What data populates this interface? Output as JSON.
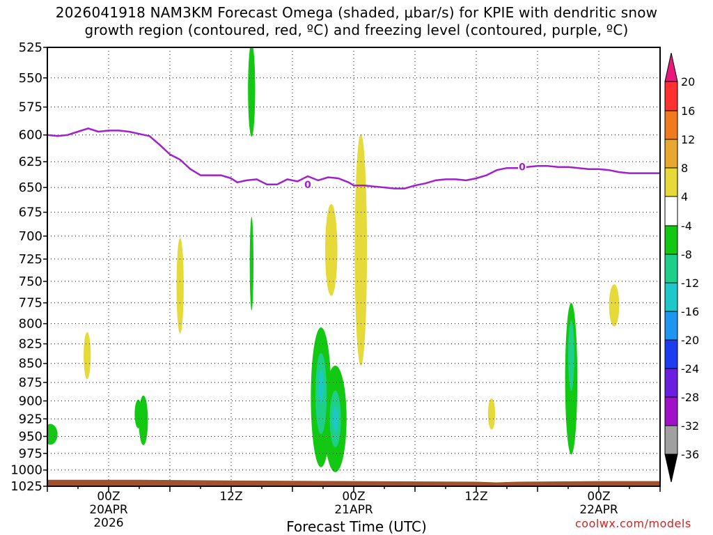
{
  "title_line1": "2026041918 NAM3KM Forecast Omega (shaded, μbar/s) for KPIE with dendritic snow",
  "title_line2": "growth region (contoured, red, ºC) and freezing level (contoured, purple, ºC)",
  "credit": "coolwx.com/models",
  "chart_data": {
    "type": "heatmap",
    "title": "2026041918 NAM3KM Forecast Omega (shaded, μbar/s) for KPIE with dendritic snow growth region (contoured, red, ºC) and freezing level (contoured, purple, ºC)",
    "xlabel": "Forecast Time (UTC)",
    "ylabel": "",
    "x_range_hours": [
      0,
      60
    ],
    "y_range_hpa": [
      525,
      1025
    ],
    "y_ticks": [
      "525",
      "550",
      "575",
      "600",
      "625",
      "650",
      "675",
      "700",
      "725",
      "750",
      "775",
      "800",
      "825",
      "850",
      "875",
      "900",
      "925",
      "950",
      "975",
      "1000",
      "1025"
    ],
    "x_ticks": [
      {
        "hour": 6,
        "label": "00Z",
        "sub1": "20APR",
        "sub2": "2026"
      },
      {
        "hour": 18,
        "label": "12Z",
        "sub1": "",
        "sub2": ""
      },
      {
        "hour": 30,
        "label": "00Z",
        "sub1": "21APR",
        "sub2": ""
      },
      {
        "hour": 42,
        "label": "12Z",
        "sub1": "",
        "sub2": ""
      },
      {
        "hour": 54,
        "label": "00Z",
        "sub1": "22APR",
        "sub2": ""
      }
    ],
    "grid": true,
    "colorbar": {
      "labels": [
        "20",
        "16",
        "12",
        "8",
        "4",
        "-4",
        "-8",
        "-12",
        "-16",
        "-20",
        "-24",
        "-28",
        "-32",
        "-36"
      ],
      "bins": [
        {
          "from": 16,
          "to": 20,
          "color": "#ff3030"
        },
        {
          "from": 12,
          "to": 16,
          "color": "#f07a1e"
        },
        {
          "from": 8,
          "to": 12,
          "color": "#e8a830"
        },
        {
          "from": 4,
          "to": 8,
          "color": "#e6d93a"
        },
        {
          "from": -4,
          "to": 4,
          "color": "#ffffff"
        },
        {
          "from": -8,
          "to": -4,
          "color": "#12c812"
        },
        {
          "from": -12,
          "to": -8,
          "color": "#1ecf8a"
        },
        {
          "from": -16,
          "to": -12,
          "color": "#1ec8c8"
        },
        {
          "from": -20,
          "to": -16,
          "color": "#1e96f0"
        },
        {
          "from": -24,
          "to": -20,
          "color": "#1e3cf0"
        },
        {
          "from": -28,
          "to": -24,
          "color": "#6a1ee0"
        },
        {
          "from": -32,
          "to": -28,
          "color": "#a010c8"
        },
        {
          "from": -36,
          "to": -32,
          "color": "#a0a0a0"
        }
      ],
      "top_arrow_color": "#e8197a",
      "bottom_arrow_color": "#000000"
    },
    "freezing_level": {
      "name": "0",
      "color": "#a21fd0",
      "label": "0",
      "points": [
        [
          0,
          600
        ],
        [
          1,
          601
        ],
        [
          2,
          600
        ],
        [
          3,
          597
        ],
        [
          4,
          594
        ],
        [
          5,
          597
        ],
        [
          6,
          596
        ],
        [
          7,
          596
        ],
        [
          8,
          597
        ],
        [
          9,
          599
        ],
        [
          10,
          601
        ],
        [
          11,
          609
        ],
        [
          12,
          618
        ],
        [
          13,
          623
        ],
        [
          14,
          632
        ],
        [
          15,
          638
        ],
        [
          16,
          638
        ],
        [
          17,
          638
        ],
        [
          18,
          641
        ],
        [
          18.6,
          645
        ],
        [
          19.5,
          643
        ],
        [
          20.5,
          642
        ],
        [
          21.5,
          647
        ],
        [
          22.5,
          647
        ],
        [
          23.5,
          642
        ],
        [
          24.5,
          644
        ],
        [
          25.5,
          639
        ],
        [
          26.5,
          643
        ],
        [
          27.5,
          640
        ],
        [
          28.5,
          641
        ],
        [
          29.5,
          645
        ],
        [
          30,
          648
        ],
        [
          31,
          648
        ],
        [
          32,
          649
        ],
        [
          33,
          650
        ],
        [
          34,
          651
        ],
        [
          35,
          651
        ],
        [
          36,
          648
        ],
        [
          37,
          646
        ],
        [
          38,
          643
        ],
        [
          39,
          642
        ],
        [
          40,
          642
        ],
        [
          41,
          643
        ],
        [
          42,
          641
        ],
        [
          43,
          638
        ],
        [
          44,
          633
        ],
        [
          45,
          631
        ],
        [
          46,
          631
        ],
        [
          47,
          630
        ],
        [
          48,
          629
        ],
        [
          49,
          629
        ],
        [
          50,
          630
        ],
        [
          51,
          630
        ],
        [
          52,
          631
        ],
        [
          53,
          632
        ],
        [
          54,
          632
        ],
        [
          55,
          633
        ],
        [
          56,
          635
        ],
        [
          57,
          636
        ],
        [
          58,
          636
        ],
        [
          59,
          636
        ],
        [
          60,
          636
        ]
      ],
      "label_positions": [
        [
          25.5,
          647
        ],
        [
          46.5,
          630
        ]
      ]
    },
    "surface_level": {
      "color": "#a0522d",
      "points": [
        [
          0,
          1015
        ],
        [
          9,
          1015
        ],
        [
          18,
          1016
        ],
        [
          30,
          1017
        ],
        [
          42,
          1018
        ],
        [
          44,
          1019
        ],
        [
          46,
          1018
        ],
        [
          54,
          1017
        ],
        [
          60,
          1017
        ]
      ]
    },
    "series": [
      {
        "name": "",
        "value_bin": "-8..-4",
        "color": "#12c812",
        "blobs": [
          {
            "x": 0.3,
            "y": 947,
            "rx": 0.7,
            "ry": 15
          },
          {
            "x": 20.0,
            "y": 560,
            "rx": 0.35,
            "ry": 40
          },
          {
            "x": 20.0,
            "y": 730,
            "rx": 0.18,
            "ry": 52
          },
          {
            "x": 8.9,
            "y": 918,
            "rx": 0.35,
            "ry": 20
          },
          {
            "x": 9.4,
            "y": 927,
            "rx": 0.45,
            "ry": 35
          },
          {
            "x": 26.8,
            "y": 895,
            "rx": 1.0,
            "ry": 95
          },
          {
            "x": 28.2,
            "y": 925,
            "rx": 1.1,
            "ry": 75
          },
          {
            "x": 51.3,
            "y": 870,
            "rx": 0.6,
            "ry": 100
          }
        ]
      },
      {
        "name": "",
        "value_bin": "-12..-8",
        "color": "#1ecf8a",
        "blobs": [
          {
            "x": 26.8,
            "y": 890,
            "rx": 0.55,
            "ry": 55
          },
          {
            "x": 28.2,
            "y": 925,
            "rx": 0.55,
            "ry": 40
          },
          {
            "x": 51.3,
            "y": 840,
            "rx": 0.3,
            "ry": 45
          }
        ]
      },
      {
        "name": "",
        "value_bin": "-16..-12",
        "color": "#1ec8c8",
        "blobs": [
          {
            "x": 26.8,
            "y": 880,
            "rx": 0.25,
            "ry": 22
          },
          {
            "x": 28.2,
            "y": 925,
            "rx": 0.25,
            "ry": 18
          }
        ]
      },
      {
        "name": "",
        "value_bin": "4..8",
        "color": "#e6d93a",
        "blobs": [
          {
            "x": 3.9,
            "y": 840,
            "rx": 0.35,
            "ry": 30
          },
          {
            "x": 13.0,
            "y": 755,
            "rx": 0.35,
            "ry": 55
          },
          {
            "x": 27.8,
            "y": 715,
            "rx": 0.6,
            "ry": 50
          },
          {
            "x": 30.7,
            "y": 715,
            "rx": 0.6,
            "ry": 125
          },
          {
            "x": 43.5,
            "y": 918,
            "rx": 0.35,
            "ry": 22
          },
          {
            "x": 55.5,
            "y": 778,
            "rx": 0.5,
            "ry": 25
          }
        ]
      }
    ]
  }
}
